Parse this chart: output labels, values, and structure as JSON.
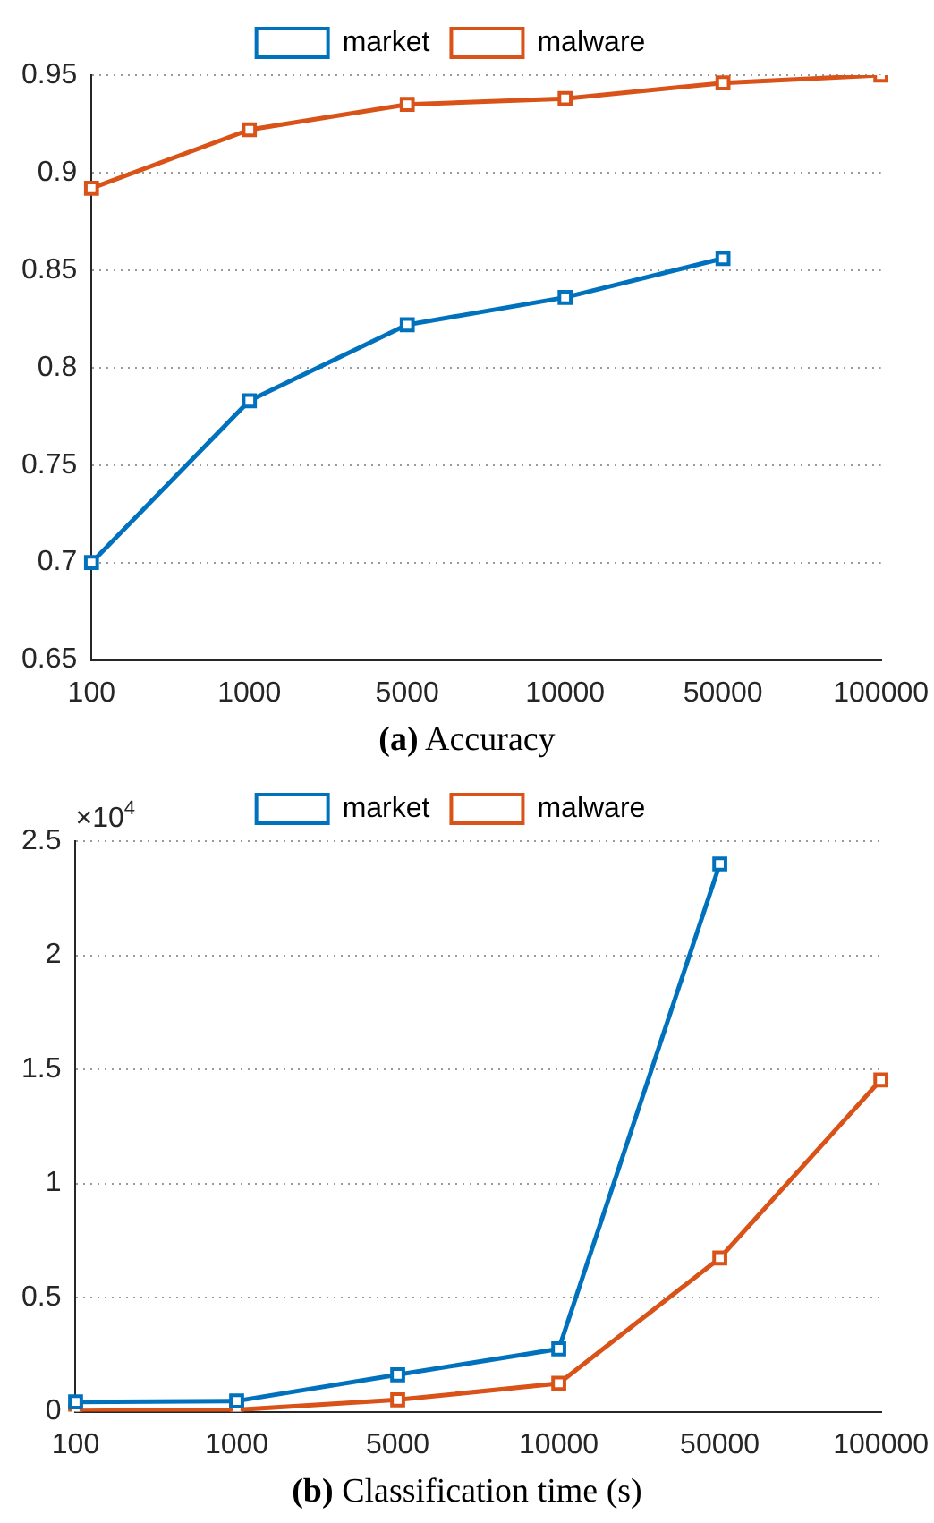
{
  "chart_data": [
    {
      "type": "line",
      "title": "(a) Accuracy",
      "categories": [
        "100",
        "1000",
        "5000",
        "10000",
        "50000",
        "100000"
      ],
      "series": [
        {
          "name": "market",
          "color": "#0072bd",
          "values": [
            0.7,
            0.783,
            0.822,
            0.836,
            0.856,
            null
          ]
        },
        {
          "name": "malware",
          "color": "#d95319",
          "values": [
            0.892,
            0.922,
            0.935,
            0.938,
            0.946,
            0.95
          ]
        }
      ],
      "ylim": [
        0.65,
        0.95
      ],
      "yticks": [
        0.65,
        0.7,
        0.75,
        0.8,
        0.85,
        0.9,
        0.95
      ],
      "grid": "y",
      "legend": "top",
      "marker": "square",
      "line_style": "solid"
    },
    {
      "type": "line",
      "title": "(b) Classification time (s)",
      "categories": [
        "100",
        "1000",
        "5000",
        "10000",
        "50000",
        "100000"
      ],
      "series": [
        {
          "name": "market",
          "color": "#0072bd",
          "values": [
            0.043,
            0.047,
            0.162,
            0.275,
            2.4,
            null
          ]
        },
        {
          "name": "malware",
          "color": "#d95319",
          "values": [
            0.003,
            0.008,
            0.052,
            0.124,
            0.673,
            1.454
          ]
        }
      ],
      "ylim": [
        0,
        2.5
      ],
      "yticks": [
        0,
        0.5,
        1,
        1.5,
        2,
        2.5
      ],
      "annotations": [
        "×10$^{4}$"
      ],
      "grid": "y",
      "legend": "top",
      "marker": "square",
      "line_style": "solid"
    }
  ]
}
